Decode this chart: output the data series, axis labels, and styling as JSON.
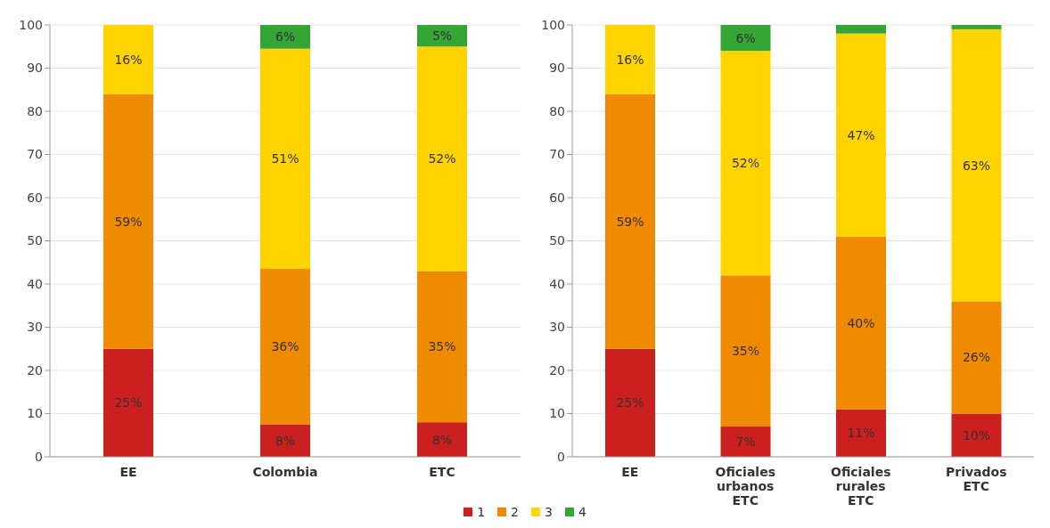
{
  "chart_data": [
    {
      "type": "bar",
      "stacked": true,
      "categories": [
        "EE",
        "Colombia",
        "ETC"
      ],
      "ylim": [
        0,
        100
      ],
      "yticks": [
        0,
        10,
        20,
        30,
        40,
        50,
        60,
        70,
        80,
        90,
        100
      ],
      "grid": "y",
      "legend": "bottom",
      "series": [
        {
          "name": "1",
          "color": "#cc1f1f",
          "values": [
            25,
            7.5,
            8
          ],
          "value_labels": [
            "25%",
            "8%",
            "8%"
          ]
        },
        {
          "name": "2",
          "color": "#f08a00",
          "values": [
            59,
            36,
            35
          ],
          "value_labels": [
            "59%",
            "36%",
            "35%"
          ]
        },
        {
          "name": "3",
          "color": "#ffd400",
          "values": [
            16,
            51,
            52
          ],
          "value_labels": [
            "16%",
            "51%",
            "52%"
          ]
        },
        {
          "name": "4",
          "color": "#35a535",
          "values": [
            null,
            5.5,
            5
          ],
          "value_labels": [
            null,
            "6%",
            "5%"
          ]
        }
      ]
    },
    {
      "type": "bar",
      "stacked": true,
      "categories": [
        "EE",
        "Oficiales urbanos ETC",
        "Oficiales rurales ETC",
        "Privados ETC"
      ],
      "ylim": [
        0,
        100
      ],
      "yticks": [
        0,
        10,
        20,
        30,
        40,
        50,
        60,
        70,
        80,
        90,
        100
      ],
      "grid": "y",
      "series": [
        {
          "name": "1",
          "color": "#cc1f1f",
          "values": [
            25,
            7,
            11,
            10
          ],
          "value_labels": [
            "25%",
            "7%",
            "11%",
            "10%"
          ]
        },
        {
          "name": "2",
          "color": "#f08a00",
          "values": [
            59,
            35,
            40,
            26
          ],
          "value_labels": [
            "59%",
            "35%",
            "40%",
            "26%"
          ]
        },
        {
          "name": "3",
          "color": "#ffd400",
          "values": [
            16,
            52,
            47,
            63
          ],
          "value_labels": [
            "16%",
            "52%",
            "47%",
            "63%"
          ]
        },
        {
          "name": "4",
          "color": "#35a535",
          "values": [
            null,
            6,
            2,
            1
          ],
          "value_labels": [
            null,
            "6%",
            null,
            null
          ]
        }
      ]
    }
  ]
}
